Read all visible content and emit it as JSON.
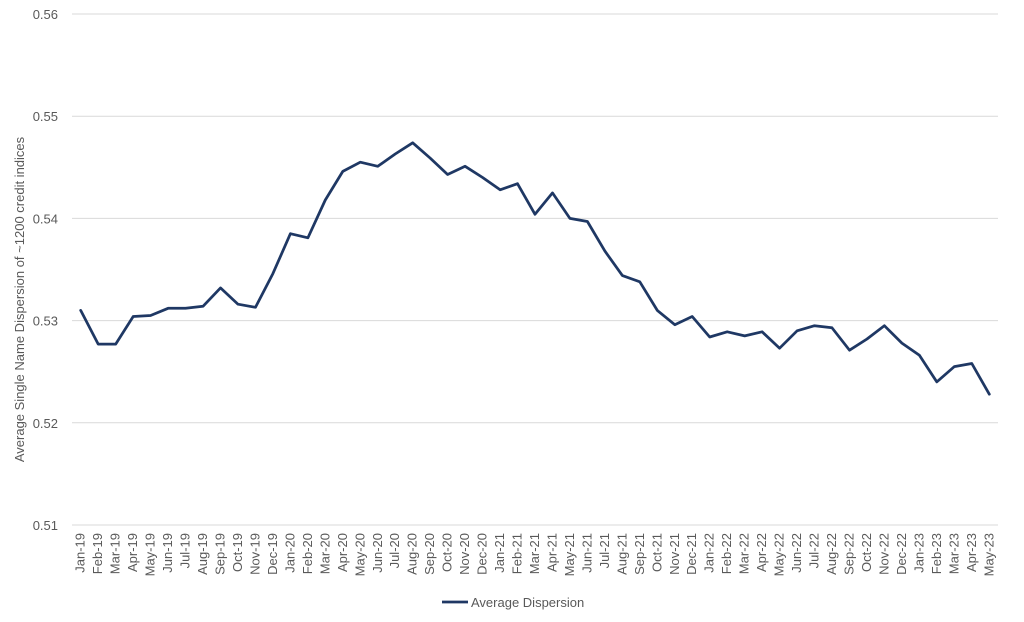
{
  "chart_data": {
    "type": "line",
    "title": "",
    "xlabel": "",
    "ylabel": "Average Single Name Dispersion of ~1200 credit indices",
    "ylim": [
      0.51,
      0.56
    ],
    "yticks": [
      "0.51",
      "0.52",
      "0.53",
      "0.54",
      "0.55",
      "0.56"
    ],
    "grid": "horizontal",
    "legend": "bottom-center",
    "categories": [
      "Jan-19",
      "Feb-19",
      "Mar-19",
      "Apr-19",
      "May-19",
      "Jun-19",
      "Jul-19",
      "Aug-19",
      "Sep-19",
      "Oct-19",
      "Nov-19",
      "Dec-19",
      "Jan-20",
      "Feb-20",
      "Mar-20",
      "Apr-20",
      "May-20",
      "Jun-20",
      "Jul-20",
      "Aug-20",
      "Sep-20",
      "Oct-20",
      "Nov-20",
      "Dec-20",
      "Jan-21",
      "Feb-21",
      "Mar-21",
      "Apr-21",
      "May-21",
      "Jun-21",
      "Jul-21",
      "Aug-21",
      "Sep-21",
      "Oct-21",
      "Nov-21",
      "Dec-21",
      "Jan-22",
      "Feb-22",
      "Mar-22",
      "Apr-22",
      "May-22",
      "Jun-22",
      "Jul-22",
      "Aug-22",
      "Sep-22",
      "Oct-22",
      "Nov-22",
      "Dec-22",
      "Jan-23",
      "Feb-23",
      "Mar-23",
      "Apr-23",
      "May-23"
    ],
    "series": [
      {
        "name": "Average Dispersion",
        "color": "#1f3864",
        "values": [
          0.531,
          0.5277,
          0.5277,
          0.5304,
          0.5305,
          0.5312,
          0.5312,
          0.5314,
          0.5332,
          0.5316,
          0.5313,
          0.5346,
          0.5385,
          0.5381,
          0.5418,
          0.5446,
          0.5455,
          0.5451,
          0.5463,
          0.5474,
          0.5459,
          0.5443,
          0.5451,
          0.544,
          0.5428,
          0.5434,
          0.5404,
          0.5425,
          0.54,
          0.5397,
          0.5368,
          0.5344,
          0.5338,
          0.531,
          0.5296,
          0.5304,
          0.5284,
          0.5289,
          0.5285,
          0.5289,
          0.5273,
          0.529,
          0.5295,
          0.5293,
          0.5271,
          0.5282,
          0.5295,
          0.5278,
          0.5266,
          0.524,
          0.5255,
          0.5258,
          0.5228
        ]
      }
    ]
  }
}
